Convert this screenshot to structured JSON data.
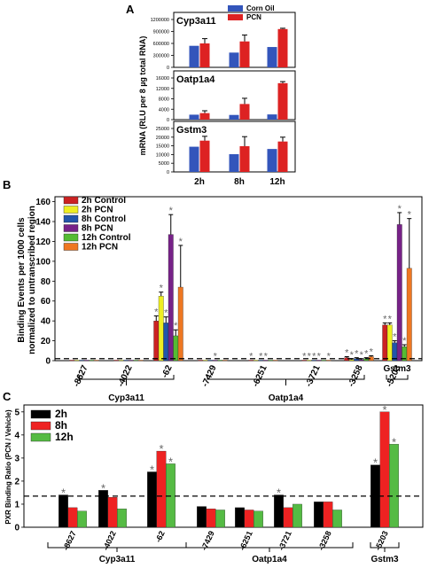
{
  "chart_data": [
    {
      "panel": "A",
      "type": "bar",
      "ylabel": "mRNA (RLU per 8 µg total RNA)",
      "categories": [
        "2h",
        "8h",
        "12h"
      ],
      "legend": [
        "Corn Oil",
        "PCN"
      ],
      "legend_position": "top-right",
      "colors": {
        "Corn Oil": "#3355bb",
        "PCN": "#dd2222"
      },
      "subplots": [
        {
          "title": "Cyp3a11",
          "ylim": [
            0,
            1200000
          ],
          "yticks": [
            "0",
            "300000",
            "600000",
            "900000",
            "1200000"
          ],
          "series": [
            {
              "name": "Corn Oil",
              "values": [
                540000,
                370000,
                510000
              ],
              "errors": [
                0,
                0,
                0
              ]
            },
            {
              "name": "PCN",
              "values": [
                600000,
                650000,
                960000
              ],
              "errors": [
                120000,
                160000,
                20000
              ]
            }
          ]
        },
        {
          "title": "Oatp1a4",
          "ylim": [
            0,
            16000
          ],
          "yticks": [
            "0",
            "4000",
            "8000",
            "12000",
            "16000"
          ],
          "series": [
            {
              "name": "Corn Oil",
              "values": [
                1900,
                1800,
                2000
              ],
              "errors": [
                0,
                0,
                0
              ]
            },
            {
              "name": "PCN",
              "values": [
                2500,
                6000,
                14000
              ],
              "errors": [
                900,
                2200,
                600
              ]
            }
          ]
        },
        {
          "title": "Gstm3",
          "ylim": [
            0,
            25000
          ],
          "yticks": [
            "0",
            "5000",
            "10000",
            "15000",
            "20000",
            "25000"
          ],
          "series": [
            {
              "name": "Corn Oil",
              "values": [
                14500,
                10200,
                13200
              ],
              "errors": [
                0,
                0,
                0
              ]
            },
            {
              "name": "PCN",
              "values": [
                18000,
                14800,
                17500
              ],
              "errors": [
                2500,
                5500,
                2500
              ]
            }
          ]
        }
      ]
    },
    {
      "panel": "B",
      "type": "bar",
      "ylabel_lines": [
        "Binding Events per 1000 cells",
        "normalized to untranscribed region"
      ],
      "ylim": [
        0,
        165
      ],
      "yticks": [
        "0",
        "20",
        "40",
        "60",
        "80",
        "100",
        "120",
        "140",
        "160"
      ],
      "dashed_line": 2,
      "categories": [
        "-8627",
        "-4022",
        "-62",
        "-7429",
        "-6251",
        "-3721",
        "-3258",
        "-5203"
      ],
      "legend": [
        "2h Control",
        "2h PCN",
        "8h Control",
        "8h PCN",
        "12h Control",
        "12h PCN"
      ],
      "legend_position": "top-left",
      "colors": {
        "2h Control": "#cc2222",
        "2h PCN": "#eeee22",
        "8h Control": "#2255aa",
        "8h PCN": "#772288",
        "12h Control": "#55bb33",
        "12h PCN": "#ee7722"
      },
      "series": [
        {
          "name": "2h Control",
          "values": [
            0.5,
            0.5,
            40,
            0.5,
            0.5,
            0.5,
            3,
            36
          ]
        },
        {
          "name": "2h PCN",
          "values": [
            0.5,
            0.5,
            65,
            0.5,
            0.5,
            0.5,
            1,
            36
          ]
        },
        {
          "name": "8h Control",
          "values": [
            0.5,
            0.5,
            38,
            0.5,
            0.5,
            0.5,
            2,
            18
          ]
        },
        {
          "name": "8h PCN",
          "values": [
            0.5,
            0.5,
            127,
            0.5,
            0.5,
            0.5,
            1,
            137
          ]
        },
        {
          "name": "12h Control",
          "values": [
            0.5,
            0.5,
            25,
            0.5,
            0.5,
            0.5,
            2,
            14
          ]
        },
        {
          "name": "12h PCN",
          "values": [
            0.5,
            0.5,
            74,
            0.5,
            0.5,
            0.5,
            4,
            93
          ]
        }
      ],
      "errors_up": [
        [
          0,
          0,
          5,
          0,
          0,
          0,
          1,
          2
        ],
        [
          0,
          0,
          4,
          0,
          0,
          0,
          1,
          2
        ],
        [
          0,
          0,
          6,
          0,
          0,
          0,
          1,
          2
        ],
        [
          0,
          0,
          20,
          0,
          0,
          0,
          1,
          12
        ],
        [
          0,
          0,
          6,
          0,
          0,
          0,
          1,
          2
        ],
        [
          0,
          0,
          42,
          0,
          0,
          0,
          1,
          50
        ]
      ],
      "stars": [
        [
          0,
          0,
          1,
          0,
          1,
          1,
          1,
          1
        ],
        [
          0,
          0,
          1,
          0,
          0,
          1,
          1,
          1
        ],
        [
          0,
          0,
          1,
          0,
          1,
          1,
          1,
          1
        ],
        [
          0,
          0,
          1,
          1,
          1,
          1,
          1,
          1
        ],
        [
          0,
          0,
          1,
          0,
          0,
          0,
          1,
          1
        ],
        [
          0,
          0,
          1,
          0,
          0,
          1,
          1,
          1
        ]
      ],
      "star_symbol": "*",
      "groups": [
        {
          "label": "Cyp3a11",
          "from": 0,
          "to": 2
        },
        {
          "label": "Oatp1a4",
          "from": 3,
          "to": 6
        },
        {
          "label": "Gstm3",
          "from": 7,
          "to": 7
        }
      ]
    },
    {
      "panel": "C",
      "type": "bar",
      "ylabel": "PXR Binding Ratio (PCN / Vehicle)",
      "ylim": [
        0,
        5.3
      ],
      "yticks": [
        "0",
        "1",
        "2",
        "3",
        "4",
        "5"
      ],
      "dashed_line": 1.35,
      "categories": [
        "-8627",
        "-4022",
        "-62",
        "-7429",
        "-6251",
        "-3721",
        "-3258",
        "-5203"
      ],
      "legend": [
        "2h",
        "8h",
        "12h"
      ],
      "legend_position": "top-left",
      "colors": {
        "2h": "#000000",
        "8h": "#ee2222",
        "12h": "#55bb44"
      },
      "series": [
        {
          "name": "2h",
          "values": [
            1.4,
            1.6,
            2.4,
            0.9,
            0.85,
            1.4,
            1.1,
            2.7
          ]
        },
        {
          "name": "8h",
          "values": [
            0.85,
            1.3,
            3.3,
            0.8,
            0.75,
            0.85,
            1.1,
            5.0
          ]
        },
        {
          "name": "12h",
          "values": [
            0.7,
            0.8,
            2.75,
            0.75,
            0.7,
            1.0,
            0.75,
            3.6
          ]
        }
      ],
      "stars": [
        [
          1,
          1,
          1,
          0,
          0,
          1,
          0,
          1
        ],
        [
          0,
          0,
          1,
          0,
          0,
          0,
          0,
          1
        ],
        [
          0,
          0,
          1,
          0,
          0,
          0,
          0,
          1
        ]
      ],
      "star_symbol": "*",
      "groups": [
        {
          "label": "Cyp3a11",
          "from": 0,
          "to": 2
        },
        {
          "label": "Oatp1a4",
          "from": 3,
          "to": 6
        },
        {
          "label": "Gstm3",
          "from": 7,
          "to": 7
        }
      ]
    }
  ]
}
